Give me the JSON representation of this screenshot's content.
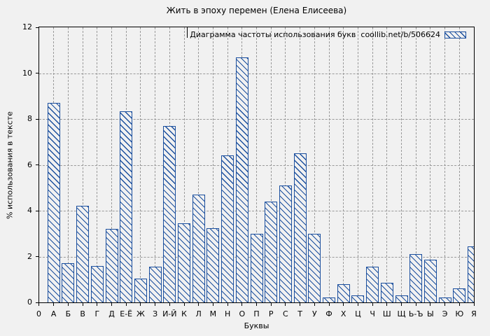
{
  "title": "Жить в эпоху перемен (Елена Елисеева)",
  "legend": {
    "label": "Диаграмма частоты использования букв  coollib.net/b/506624"
  },
  "axes": {
    "x_label": "Буквы",
    "y_label": "% использования в тексте",
    "origin_label": "0",
    "y_ticks": [
      0,
      2,
      4,
      6,
      8,
      10,
      12
    ]
  },
  "colors": {
    "bar": "#1b4f9e",
    "grid": "#9a9a9a",
    "background": "#f1f1f1",
    "axis": "#000000"
  },
  "chart_data": {
    "type": "bar",
    "title": "Жить в эпоху перемен (Елена Елисеева)",
    "legend_entries": [
      "Диаграмма частоты использования букв  coollib.net/b/506624"
    ],
    "legend_position": "top-right",
    "categories": [
      "А",
      "Б",
      "В",
      "Г",
      "Д",
      "Е-Ё",
      "Ж",
      "З",
      "И-Й",
      "К",
      "Л",
      "М",
      "Н",
      "О",
      "П",
      "Р",
      "С",
      "Т",
      "У",
      "Ф",
      "Х",
      "Ц",
      "Ч",
      "Ш",
      "Щ",
      "Ь-Ъ",
      "Ы",
      "Э",
      "Ю",
      "Я"
    ],
    "values": [
      8.7,
      1.7,
      4.2,
      1.6,
      3.2,
      8.35,
      1.05,
      1.55,
      7.7,
      3.45,
      4.7,
      3.25,
      6.4,
      10.7,
      3.0,
      4.4,
      5.1,
      6.5,
      3.0,
      0.2,
      0.8,
      0.3,
      1.55,
      0.85,
      0.3,
      2.1,
      1.85,
      0.2,
      0.6,
      2.45
    ],
    "xlabel": "Буквы",
    "ylabel": "% использования в тексте",
    "ylim": [
      0,
      12
    ],
    "grid": true,
    "bar_style": "hatched"
  }
}
